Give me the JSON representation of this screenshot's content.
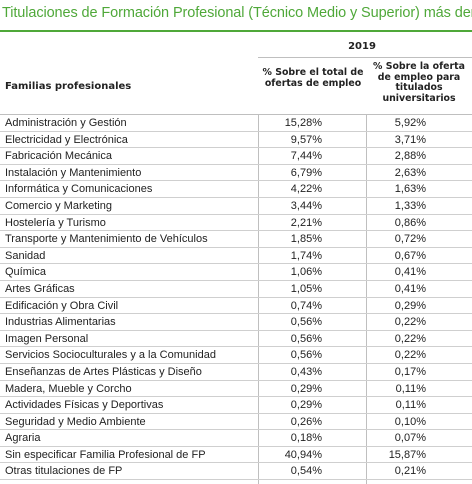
{
  "title": "Titulaciones de Formación Profesional (Técnico Medio y Superior) más dema",
  "year": "2019",
  "headers": {
    "familias": "Familias profesionales",
    "col1": "% Sobre el total de ofertas de empleo",
    "col2": "% Sobre la oferta de empleo para titulados universitarios"
  },
  "rows": [
    {
      "name": "Administración y Gestión",
      "v1": "15,28%",
      "v2": "5,92%"
    },
    {
      "name": "Electricidad y Electrónica",
      "v1": "9,57%",
      "v2": "3,71%"
    },
    {
      "name": "Fabricación Mecánica",
      "v1": "7,44%",
      "v2": "2,88%"
    },
    {
      "name": "Instalación y Mantenimiento",
      "v1": "6,79%",
      "v2": "2,63%"
    },
    {
      "name": "Informática y Comunicaciones",
      "v1": "4,22%",
      "v2": "1,63%"
    },
    {
      "name": "Comercio y Marketing",
      "v1": "3,44%",
      "v2": "1,33%"
    },
    {
      "name": "Hostelería y Turismo",
      "v1": "2,21%",
      "v2": "0,86%"
    },
    {
      "name": "Transporte y Mantenimiento de Vehículos",
      "v1": "1,85%",
      "v2": "0,72%"
    },
    {
      "name": "Sanidad",
      "v1": "1,74%",
      "v2": "0,67%"
    },
    {
      "name": "Química",
      "v1": "1,06%",
      "v2": "0,41%"
    },
    {
      "name": "Artes Gráficas",
      "v1": "1,05%",
      "v2": "0,41%"
    },
    {
      "name": "Edificación y Obra Civil",
      "v1": "0,74%",
      "v2": "0,29%"
    },
    {
      "name": "Industrias Alimentarias",
      "v1": "0,56%",
      "v2": "0,22%"
    },
    {
      "name": "Imagen Personal",
      "v1": "0,56%",
      "v2": "0,22%"
    },
    {
      "name": "Servicios Socioculturales y a la Comunidad",
      "v1": "0,56%",
      "v2": "0,22%"
    },
    {
      "name": "Enseñanzas de Artes Plásticas y Diseño",
      "v1": "0,43%",
      "v2": "0,17%"
    },
    {
      "name": "Madera, Mueble y Corcho",
      "v1": "0,29%",
      "v2": "0,11%"
    },
    {
      "name": "Actividades Físicas y Deportivas",
      "v1": "0,29%",
      "v2": "0,11%"
    },
    {
      "name": "Seguridad y Medio Ambiente",
      "v1": "0,26%",
      "v2": "0,10%"
    },
    {
      "name": "Agraria",
      "v1": "0,18%",
      "v2": "0,07%"
    },
    {
      "name": "Sin especificar Familia Profesional de FP",
      "v1": "40,94%",
      "v2": "15,87%"
    },
    {
      "name": "Otras titulaciones de FP",
      "v1": "0,54%",
      "v2": "0,21%"
    }
  ],
  "colors": {
    "accent": "#4fa839",
    "rule": "#bfbfbf"
  }
}
